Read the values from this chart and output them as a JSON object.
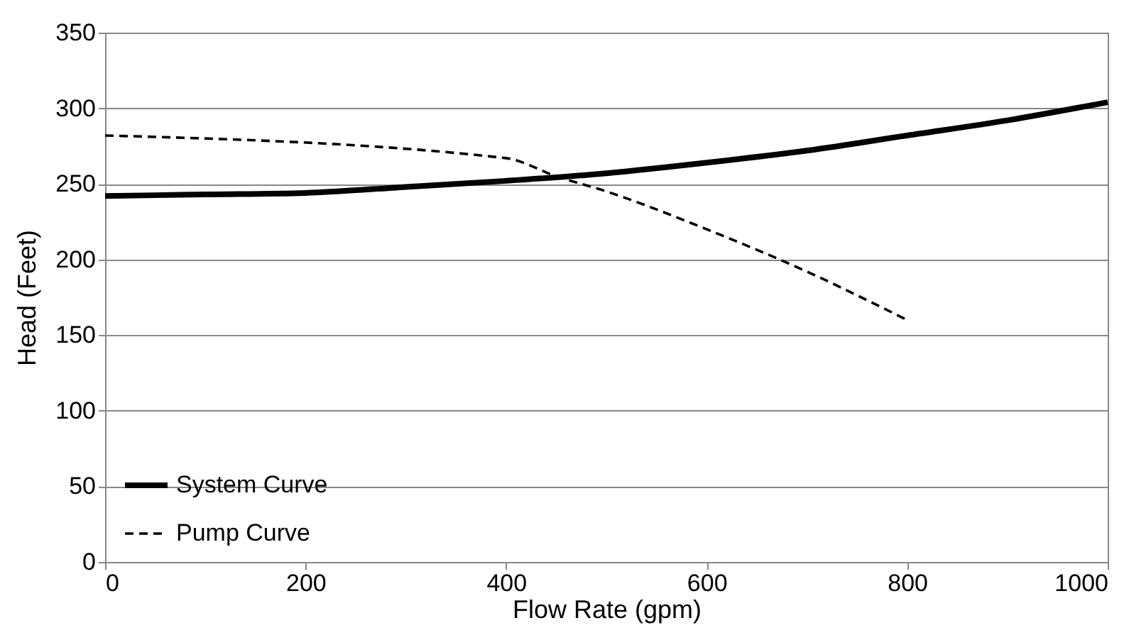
{
  "chart_data": {
    "type": "line",
    "xlabel": "Flow Rate (gpm)",
    "ylabel": "Head (Feet)",
    "xlim": [
      0,
      1000
    ],
    "xticks": [
      0,
      200,
      400,
      600,
      800,
      1000
    ],
    "ylim": [
      0,
      350
    ],
    "yticks": [
      0,
      50,
      100,
      150,
      200,
      250,
      300,
      350
    ],
    "grid": "y",
    "legend": "bottom left",
    "marker": "none",
    "series": [
      {
        "name": "System Curve",
        "color": "#000000",
        "line_style": "solid",
        "x": [
          0,
          100,
          200,
          300,
          400,
          500,
          600,
          700,
          800,
          900,
          1000
        ],
        "values": [
          242,
          243,
          244,
          248,
          252,
          257,
          264,
          272,
          282,
          292,
          304
        ]
      },
      {
        "name": "Pump Curve",
        "color": "#000000",
        "line_style": "dashed",
        "x": [
          0,
          400,
          450,
          500,
          600,
          700,
          800
        ],
        "values": [
          282,
          267,
          255,
          245,
          220,
          192,
          160
        ]
      }
    ]
  }
}
